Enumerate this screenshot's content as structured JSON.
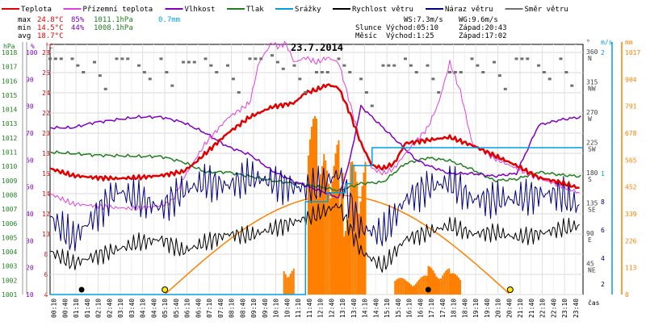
{
  "chart_data": {
    "type": "line",
    "title": "23.7.2014",
    "xlabel": "čas",
    "x_ticks": [
      "00:10",
      "00:40",
      "01:10",
      "01:40",
      "02:10",
      "02:40",
      "03:10",
      "03:40",
      "04:10",
      "04:40",
      "05:10",
      "05:40",
      "06:10",
      "06:40",
      "07:10",
      "07:40",
      "08:10",
      "08:40",
      "09:10",
      "09:40",
      "10:10",
      "10:40",
      "11:10",
      "11:40",
      "12:10",
      "12:40",
      "13:10",
      "13:40",
      "14:10",
      "14:40",
      "15:10",
      "15:40",
      "16:10",
      "16:40",
      "17:10",
      "17:40",
      "18:10",
      "18:40",
      "19:10",
      "19:40",
      "20:10",
      "20:40",
      "21:10",
      "21:40",
      "22:10",
      "22:40",
      "23:10",
      "23:40"
    ],
    "legend": [
      {
        "name": "Teplota",
        "color": "#e00000"
      },
      {
        "name": "Přízemní teplota",
        "color": "#e040e0"
      },
      {
        "name": "Vlhkost",
        "color": "#8000c0"
      },
      {
        "name": "Tlak",
        "color": "#208020"
      },
      {
        "name": "Srážky",
        "color": "#00a0e0"
      },
      {
        "name": "Rychlost větru",
        "color": "#000000"
      },
      {
        "name": "Náraz větru",
        "color": "#000080"
      },
      {
        "name": "Směr větru",
        "color": "#707070"
      }
    ],
    "stats": {
      "max": {
        "label": "max",
        "temp": "24.8°C",
        "hum": "85%",
        "press": "1011.1hPa",
        "rain": "0.7mm"
      },
      "min": {
        "label": "min",
        "temp": "14.5°C",
        "hum": "44%",
        "press": "1008.1hPa"
      },
      "avg": {
        "label": "avg",
        "temp": "18.7°C"
      }
    },
    "info": {
      "ws": "WS:7.3m/s",
      "wg": "WG:9.6m/s",
      "sun_label": "Slunce",
      "sun_rise": "Východ:05:10",
      "sun_set": "Západ:20:43",
      "moon_label": "Měsíc",
      "moon_rise": "Východ:1:25",
      "moon_set": "Západ:17:02"
    },
    "axes": {
      "hpa": {
        "label": "hPa",
        "ticks": [
          "1018",
          "1017",
          "1016",
          "1015",
          "1014",
          "1013",
          "1012",
          "1011",
          "1010",
          "1009",
          "1008",
          "1007",
          "1006",
          "1005",
          "1004",
          "1003",
          "1002",
          "1001"
        ],
        "color": "#208020"
      },
      "pct": {
        "label": "%",
        "ticks": [
          "100",
          "90",
          "80",
          "70",
          "60",
          "50",
          "40",
          "30",
          "20",
          "10"
        ],
        "color": "#8000c0"
      },
      "degc": {
        "label": "°C",
        "ticks": [
          "28",
          "26",
          "24",
          "22",
          "20",
          "18",
          "16",
          "14",
          "12",
          "10",
          "8",
          "6",
          "4"
        ],
        "color": "#e00000"
      },
      "dir": {
        "label": "°",
        "ticks": [
          "360",
          "315",
          "270",
          "225",
          "180",
          "135",
          "90",
          "45"
        ],
        "names": [
          "N",
          "NW",
          "W",
          "SW",
          "S",
          "SE",
          "E",
          "NE"
        ],
        "color": "#404040"
      },
      "ms": {
        "label": "m/s",
        "ticks": [
          "2",
          "1",
          "8",
          "6",
          "4",
          "2"
        ],
        "color": "#00a0e0"
      },
      "mm": {
        "label": "mm",
        "ticks": [
          "1017",
          "904",
          "791",
          "678",
          "565",
          "452",
          "339",
          "226",
          "113",
          "0"
        ],
        "color": "#ff8000"
      }
    },
    "series": {
      "temp_x": [
        0,
        1,
        2,
        3,
        4,
        5,
        6,
        6.5,
        7,
        8,
        9,
        10,
        11,
        11.5,
        12,
        12.5,
        13,
        13.5,
        14,
        14.5,
        15,
        15.5,
        16,
        17,
        18,
        19,
        20,
        21,
        22,
        23,
        23.9
      ],
      "temp_y": [
        16.5,
        15.8,
        15.6,
        15.5,
        15.6,
        15.8,
        16.2,
        17,
        18,
        20,
        21.6,
        22.6,
        23,
        24,
        24.3,
        24.8,
        24.5,
        22,
        19,
        16.8,
        16.5,
        17,
        19,
        19.3,
        19.6,
        18.8,
        17.8,
        16.8,
        15.6,
        15.1,
        14.5
      ],
      "ground_x": [
        0,
        1,
        2,
        3,
        4,
        5,
        5.5,
        6,
        7,
        8,
        9,
        9.4,
        10,
        10.3,
        10.6,
        11,
        11.5,
        12,
        12.5,
        13,
        13.5,
        14,
        14.5,
        15,
        15.5,
        16,
        17,
        17.5,
        18,
        18.5,
        19,
        20,
        21,
        22,
        23,
        23.9
      ],
      "ground_y": [
        14,
        13,
        12.8,
        12.6,
        12.5,
        12.8,
        13.3,
        15.5,
        19,
        21.5,
        23,
        27,
        29,
        28.5,
        29,
        27,
        27.5,
        27,
        27.5,
        27,
        23,
        19,
        16.5,
        16,
        16.5,
        18,
        20.5,
        23,
        27,
        24,
        19,
        17.5,
        16.5,
        15.5,
        14.8,
        14
      ],
      "hum_x": [
        0,
        1,
        2,
        3,
        4,
        5,
        6,
        7,
        8,
        9,
        10,
        11,
        12,
        13,
        13.5,
        14,
        15,
        16,
        16.5,
        17,
        18,
        19,
        20,
        21,
        22,
        23,
        23.9
      ],
      "hum_y": [
        72,
        72,
        74,
        75,
        76,
        76,
        74,
        70,
        65,
        62,
        56,
        52,
        49,
        46,
        60,
        80,
        72,
        64,
        60,
        58,
        55,
        55,
        54,
        55,
        73,
        75,
        76
      ],
      "press_x": [
        0,
        2,
        4,
        5,
        6,
        7,
        8,
        10,
        12,
        13,
        14,
        15,
        16,
        17,
        18,
        19,
        20,
        21,
        22,
        23,
        23.9
      ],
      "press_y": [
        1011.0,
        1010.8,
        1010.7,
        1010.7,
        1010.3,
        1009.6,
        1009.6,
        1009.0,
        1008.6,
        1008.3,
        1008.8,
        1008.9,
        1010.2,
        1010.6,
        1010.4,
        1009.8,
        1009.0,
        1009.1,
        1009.6,
        1009.4,
        1009.3
      ],
      "wind_x": [
        0,
        1,
        2,
        3,
        4,
        5,
        6,
        7,
        8,
        9,
        10,
        11,
        12,
        13,
        14,
        15,
        16,
        17,
        18,
        19,
        20,
        21,
        22,
        23,
        23.9
      ],
      "wind_y": [
        2.5,
        1.8,
        2.2,
        2.6,
        3.0,
        3.2,
        2.5,
        3.0,
        3.5,
        3.4,
        3.8,
        4.2,
        4.6,
        5.2,
        2.5,
        1.6,
        3.2,
        3.6,
        4.0,
        3.5,
        3.6,
        3.3,
        3.5,
        3.8,
        4.0
      ],
      "gust_x": [
        0,
        1,
        2,
        3,
        4,
        5,
        6,
        7,
        8,
        9,
        10,
        11,
        12,
        13,
        14,
        15,
        16,
        17,
        18,
        19,
        20,
        21,
        22,
        23,
        23.9
      ],
      "gust_y": [
        4.5,
        3.2,
        4.5,
        6.0,
        5.5,
        5.0,
        6.0,
        6.5,
        6.3,
        6.8,
        6.5,
        6.2,
        6.2,
        7.0,
        3.8,
        3.5,
        5.5,
        6.2,
        6.5,
        5.5,
        5.5,
        5.5,
        5.8,
        5.8,
        5.0
      ],
      "rain_x": [
        0,
        6,
        7,
        8,
        8.5,
        9,
        11,
        11.2,
        11.5,
        11.8,
        12,
        12.5,
        13,
        13.3,
        13.6,
        14,
        14.5,
        15,
        15.3,
        24
      ],
      "rain_y": [
        0,
        0,
        0,
        0,
        0,
        0,
        0,
        0,
        0.1,
        0.1,
        0.1,
        0.2,
        0.2,
        0.3,
        0.5,
        0.5,
        0.7,
        0.7,
        0.7,
        0.7
      ],
      "rain_intensity_x": [
        10.3,
        10.5,
        11,
        11.3,
        11.6,
        12,
        12.3,
        12.6,
        13,
        13.2,
        13.5,
        13.8,
        14.2,
        15,
        15.5,
        16,
        16.5,
        17,
        17.5,
        18,
        18.5
      ],
      "rain_intensity_y": [
        0,
        120,
        0,
        0,
        750,
        560,
        600,
        650,
        660,
        420,
        560,
        600,
        0,
        0,
        70,
        60,
        80,
        120,
        110,
        90,
        0
      ],
      "sun_x": [
        5.17,
        12.95,
        20.72
      ],
      "sun_y": [
        0,
        1,
        0
      ],
      "wind_dir_x": [
        0,
        1,
        2,
        3,
        4,
        5,
        6,
        7,
        8,
        9,
        10,
        11,
        12,
        13,
        14,
        15,
        16,
        17,
        18,
        19,
        20,
        21,
        22,
        23
      ],
      "wind_dir_y": [
        350,
        350,
        345,
        350,
        340,
        350,
        345,
        350,
        340,
        350,
        355,
        340,
        330,
        350,
        320,
        340,
        350,
        340,
        330,
        350,
        345,
        350,
        340,
        350
      ]
    }
  }
}
